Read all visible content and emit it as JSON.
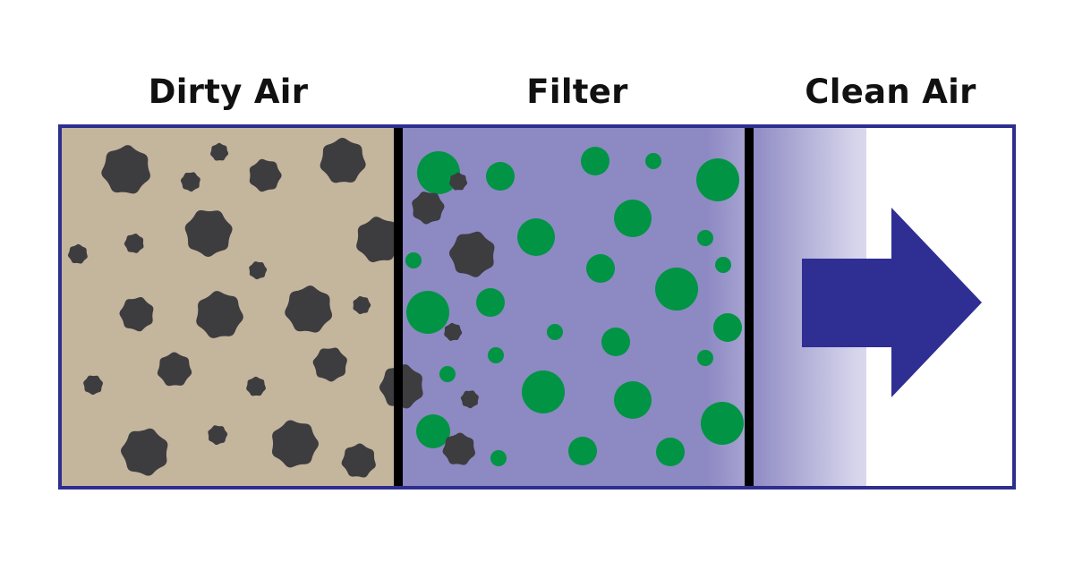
{
  "labels": {
    "dirty": "Dirty Air",
    "filter": "Filter",
    "clean": "Clean Air"
  },
  "colors": {
    "frame": "#2e2e8f",
    "dirty_bg": "#c4b59d",
    "filter_bg": "#8d89c3",
    "particle": "#3d3c3f",
    "filter_fiber": "#009444",
    "divider": "#000000",
    "arrow": "#2e2e93"
  },
  "icons": {
    "flow_direction": "arrow-right-icon"
  }
}
